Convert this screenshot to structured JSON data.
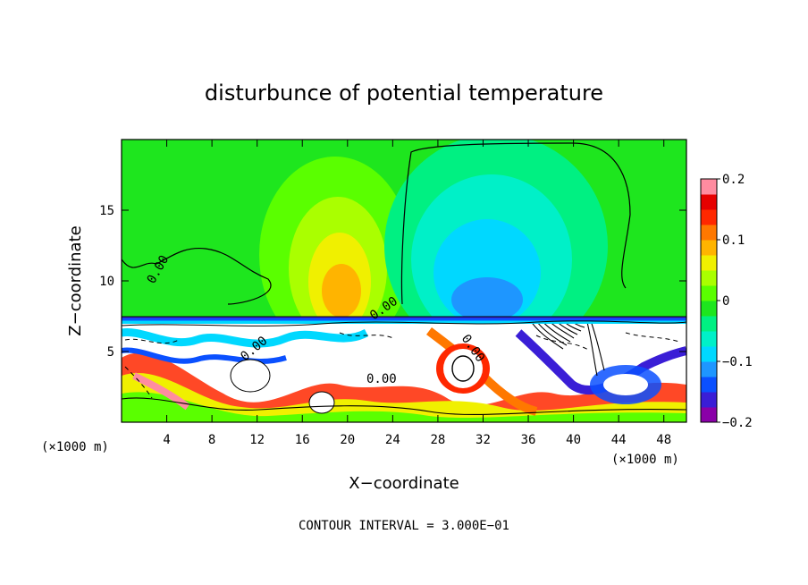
{
  "chart_data": {
    "type": "heatmap",
    "title": "disturbunce of potential temperature",
    "xlabel": "X−coordinate",
    "ylabel": "Z−coordinate",
    "x_unit_left": "(×1000 m)",
    "x_unit_right": "(×1000 m)",
    "xlim": [
      0,
      50
    ],
    "ylim": [
      0,
      20
    ],
    "x_ticks": [
      4,
      8,
      12,
      16,
      20,
      24,
      28,
      32,
      36,
      40,
      44,
      48
    ],
    "y_ticks": [
      5,
      10,
      15
    ],
    "x_tick_labels": [
      "4",
      "8",
      "12",
      "16",
      "20",
      "24",
      "28",
      "32",
      "36",
      "40",
      "44",
      "48"
    ],
    "y_tick_labels": [
      "5",
      "10",
      "15"
    ],
    "colorbar": {
      "min": -0.2,
      "max": 0.2,
      "ticks": [
        0.2,
        0.1,
        0,
        -0.1,
        -0.2
      ],
      "tick_labels": [
        "0.2",
        "0.1",
        "0",
        "−0.1",
        "−0.2"
      ],
      "colors": [
        "#8a00a8",
        "#3a1ed6",
        "#0a50ff",
        "#1e96ff",
        "#00d8ff",
        "#00f0c8",
        "#00f082",
        "#1ee61e",
        "#5aff00",
        "#aaff00",
        "#f0f000",
        "#ffb400",
        "#ff7800",
        "#ff2800",
        "#e60000",
        "#ff8ca0"
      ]
    },
    "contour_labels": [
      "0.00",
      "0.00",
      "0.00",
      "0.00",
      "0.00"
    ],
    "footer": "CONTOUR INTERVAL = 3.000E−01"
  }
}
